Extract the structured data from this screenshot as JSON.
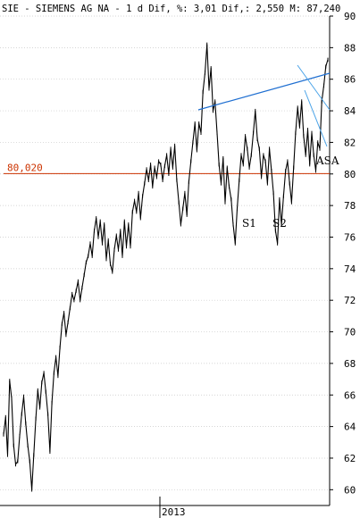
{
  "header": {
    "text": "SIE - SIEMENS AG NA -  1 d Dif, %: 3,01 Dif,: 2,550 M: 87,240"
  },
  "chart_data": {
    "type": "line",
    "title": "SIE - SIEMENS AG NA -  1 d Dif, %: 3,01 Dif,: 2,550 M: 87,240",
    "ylim": [
      59,
      90
    ],
    "y_ticks": [
      60,
      62,
      64,
      66,
      68,
      70,
      72,
      74,
      76,
      78,
      80,
      82,
      84,
      86,
      88,
      90
    ],
    "x_tick_labels": [
      "2013"
    ],
    "grid": true,
    "series": [
      {
        "values": [
          63.5,
          64.6,
          62.2,
          66.9,
          65.8,
          62.8,
          61.6,
          61.8,
          63.4,
          64.8,
          65.9,
          64.2,
          62.8,
          61.8,
          60.0,
          62.2,
          64.5,
          66.3,
          65.2,
          66.8,
          67.4,
          66.2,
          64.8,
          62.4,
          65.5,
          67.4,
          68.4,
          67.2,
          69.0,
          70.5,
          71.2,
          69.8,
          70.6,
          71.5,
          72.4,
          72.0,
          72.6,
          73.2,
          72.0,
          72.8,
          73.6,
          74.4,
          74.8,
          75.6,
          74.8,
          76.4,
          77.2,
          76.0,
          77.0,
          75.6,
          76.8,
          74.6,
          75.8,
          74.3,
          73.8,
          75.2,
          76.1,
          75.2,
          76.4,
          74.8,
          77.0,
          75.4,
          76.8,
          75.4,
          77.6,
          78.3,
          77.6,
          78.8,
          77.2,
          78.6,
          79.4,
          80.3,
          79.6,
          80.6,
          79.2,
          80.4,
          79.8,
          80.8,
          80.6,
          79.6,
          80.5,
          81.2,
          80.0,
          81.6,
          80.4,
          81.8,
          79.6,
          78.2,
          76.8,
          77.8,
          78.8,
          77.4,
          79.5,
          80.8,
          82.0,
          83.2,
          81.5,
          83.2,
          82.6,
          85.2,
          86.4,
          88.2,
          85.4,
          86.7,
          84.0,
          84.6,
          82.6,
          80.6,
          79.4,
          81.0,
          78.2,
          80.4,
          79.2,
          78.4,
          76.8,
          75.6,
          77.8,
          79.6,
          81.2,
          80.6,
          82.4,
          81.6,
          80.4,
          81.2,
          82.6,
          84.0,
          82.2,
          81.6,
          79.8,
          81.2,
          80.8,
          79.4,
          81.6,
          80.2,
          78.8,
          76.4,
          75.6,
          78.4,
          76.8,
          78.6,
          80.2,
          80.8,
          79.4,
          78.2,
          80.4,
          82.6,
          84.2,
          83.0,
          84.6,
          82.4,
          81.2,
          82.8,
          80.6,
          82.6,
          81.2,
          80.2,
          82.0,
          81.6,
          84.6,
          85.6,
          86.8,
          87.24
        ]
      }
    ]
  },
  "overlays": {
    "horizontal_level_label": "80,020",
    "horizontal_level_value": 80.02,
    "annotations": [
      "S1",
      "S2",
      "ASA"
    ]
  },
  "colors": {
    "price_line": "#000000",
    "trendline": "#1f6fd1",
    "level_line": "#cc3300",
    "level_text": "#cc3300"
  }
}
